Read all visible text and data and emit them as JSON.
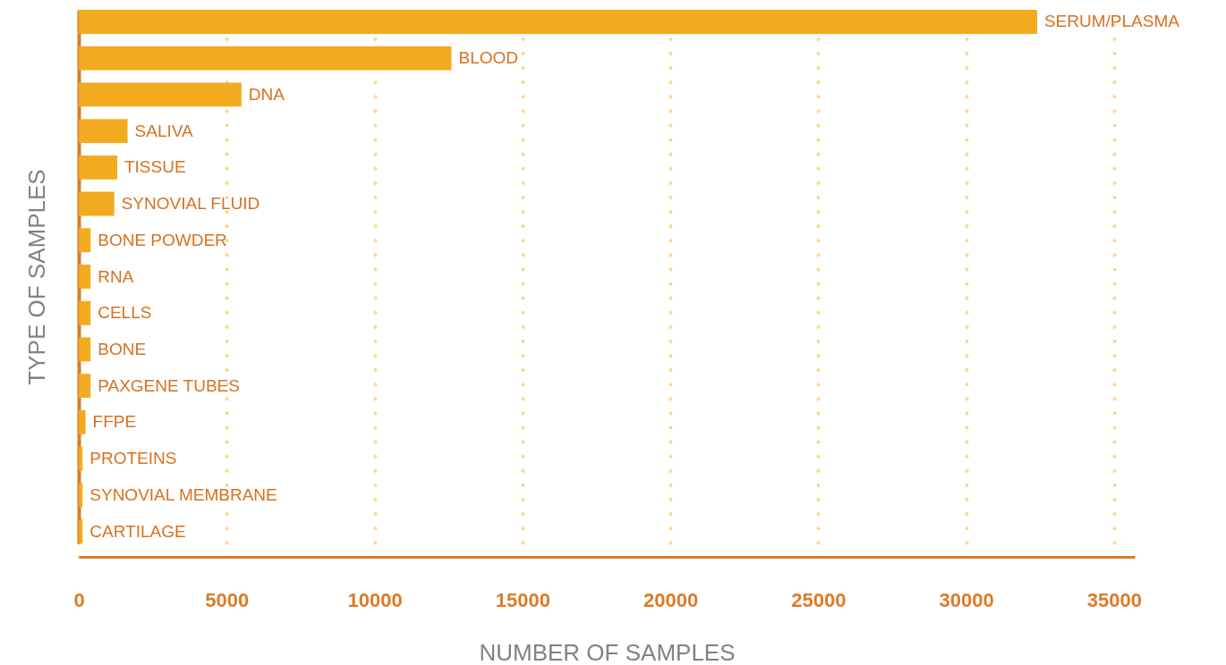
{
  "chart_data": {
    "type": "bar",
    "orientation": "horizontal",
    "xlabel": "NUMBER OF SAMPLES",
    "ylabel": "TYPE OF SAMPLES",
    "categories": [
      "SERUM/PLASMA",
      "BLOOD",
      "DNA",
      "SALIVA",
      "TISSUE",
      "SYNOVIAL FLUID",
      "BONE POWDER",
      "RNA",
      "CELLS",
      "BONE",
      "PAXGENE TUBES",
      "FFPE",
      "PROTEINS",
      "SYNOVIAL MEMBRANE",
      "CARTILAGE"
    ],
    "values": [
      32400,
      12600,
      5500,
      1650,
      1300,
      1200,
      400,
      400,
      400,
      400,
      400,
      230,
      130,
      130,
      130
    ],
    "color": "#f2ab1f",
    "xlim": [
      0,
      35700
    ],
    "xticks": [
      0,
      5000,
      10000,
      15000,
      20000,
      25000,
      30000,
      35000
    ],
    "grid": "x",
    "tick_labels": "x"
  }
}
